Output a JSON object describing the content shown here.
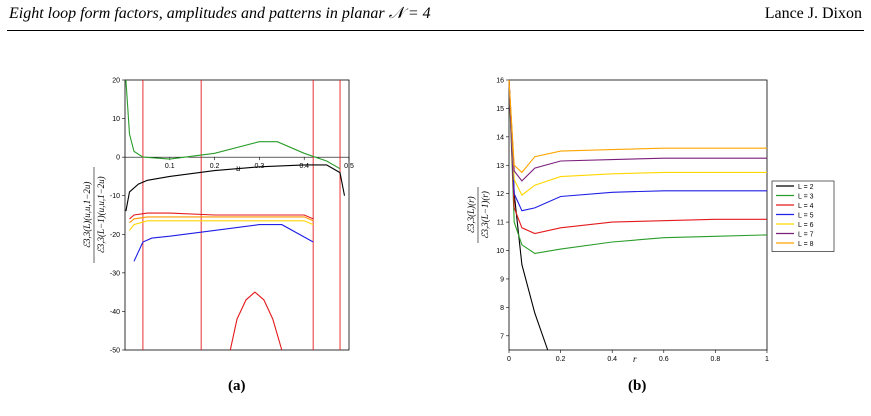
{
  "header": {
    "title": "Eight loop form factors, amplitudes and patterns in planar 𝒩 = 4",
    "author": "Lance J. Dixon"
  },
  "panels": [
    {
      "label": "(a)"
    },
    {
      "label": "(b)"
    }
  ],
  "chart_data": [
    {
      "type": "line",
      "xlabel": "u",
      "ylabel": "ℰ3,3(L)(u,u,1−2u) / ℰ3,3(L−1)(u,u,1−2u)",
      "xlim": [
        0,
        0.5
      ],
      "ylim": [
        -50,
        20
      ],
      "x_ticks": [
        "0.1",
        "0.2",
        "0.3",
        "0.4",
        "0.5"
      ],
      "y_ticks": [
        "20",
        "10",
        "0",
        "-10",
        "-20",
        "-30",
        "-40",
        "-50"
      ],
      "grid": false,
      "vertical_lines_red": [
        0.04,
        0.17,
        0.42,
        0.48
      ],
      "series": [
        {
          "color": "#2a9d2a",
          "x": [
            0.002,
            0.01,
            0.02,
            0.04,
            0.1,
            0.2,
            0.3,
            0.34,
            0.4,
            0.45,
            0.48
          ],
          "y": [
            20,
            6,
            1.5,
            0,
            -0.5,
            1,
            4,
            4,
            1,
            -1,
            -3
          ]
        },
        {
          "color": "#000000",
          "x": [
            0.002,
            0.01,
            0.03,
            0.05,
            0.1,
            0.2,
            0.3,
            0.4,
            0.45,
            0.48,
            0.49
          ],
          "y": [
            -14,
            -9,
            -7,
            -6,
            -5,
            -3.5,
            -2.5,
            -2,
            -2,
            -4,
            -10
          ]
        },
        {
          "color": "#e41a1c",
          "x": [
            0.01,
            0.02,
            0.05,
            0.1,
            0.2,
            0.3,
            0.4,
            0.42
          ],
          "y": [
            -16,
            -15,
            -14.5,
            -14.5,
            -15,
            -15,
            -15,
            -16
          ]
        },
        {
          "color": "#ff9900",
          "x": [
            0.01,
            0.02,
            0.05,
            0.1,
            0.2,
            0.3,
            0.4,
            0.42
          ],
          "y": [
            -17,
            -16,
            -15.5,
            -15.5,
            -15.5,
            -15.5,
            -15.5,
            -16.5
          ]
        },
        {
          "color": "#ffd700",
          "x": [
            0.01,
            0.02,
            0.05,
            0.1,
            0.2,
            0.3,
            0.4,
            0.42
          ],
          "y": [
            -19,
            -17.5,
            -16.5,
            -16.5,
            -16.5,
            -16.5,
            -16.5,
            -17.5
          ]
        },
        {
          "color": "#1f1fe6",
          "x": [
            0.02,
            0.04,
            0.06,
            0.1,
            0.2,
            0.3,
            0.35,
            0.42
          ],
          "y": [
            -27,
            -22,
            -21,
            -20.5,
            -19,
            -17.5,
            -17.5,
            -22
          ]
        },
        {
          "color": "#e41a1c",
          "x": [
            0.235,
            0.25,
            0.27,
            0.29,
            0.31,
            0.33,
            0.35
          ],
          "y": [
            -50,
            -42,
            -37,
            -35,
            -37,
            -42,
            -50
          ]
        }
      ]
    },
    {
      "type": "line",
      "xlabel": "r",
      "ylabel": "ℰ3,3(L)(r) / ℰ3,3(L−1)(r)",
      "xlim": [
        0,
        1
      ],
      "ylim": [
        6.5,
        16
      ],
      "x_ticks": [
        "0",
        "0.2",
        "0.4",
        "0.6",
        "0.8",
        "1"
      ],
      "y_ticks": [
        "16",
        "15",
        "14",
        "13",
        "12",
        "11",
        "10",
        "9",
        "8",
        "7"
      ],
      "grid": false,
      "legend": "right",
      "series": [
        {
          "name": "L = 2",
          "color": "#000000",
          "x": [
            0.0,
            0.02,
            0.05,
            0.1,
            0.15
          ],
          "y": [
            16,
            12,
            9.5,
            7.8,
            6.5
          ]
        },
        {
          "name": "L = 3",
          "color": "#2a9d2a",
          "x": [
            0.0,
            0.02,
            0.05,
            0.1,
            0.2,
            0.4,
            0.6,
            0.8,
            1.0
          ],
          "y": [
            16,
            11,
            10.2,
            9.9,
            10.05,
            10.3,
            10.45,
            10.5,
            10.55
          ]
        },
        {
          "name": "L = 4",
          "color": "#e41a1c",
          "x": [
            0.0,
            0.02,
            0.05,
            0.1,
            0.2,
            0.4,
            0.6,
            0.8,
            1.0
          ],
          "y": [
            16,
            11.5,
            10.8,
            10.6,
            10.8,
            11.0,
            11.05,
            11.1,
            11.1
          ]
        },
        {
          "name": "L = 5",
          "color": "#1f1fe6",
          "x": [
            0.0,
            0.02,
            0.05,
            0.1,
            0.2,
            0.4,
            0.6,
            0.8,
            1.0
          ],
          "y": [
            16,
            12,
            11.4,
            11.5,
            11.9,
            12.05,
            12.1,
            12.1,
            12.1
          ]
        },
        {
          "name": "L = 6",
          "color": "#ffd700",
          "x": [
            0.0,
            0.02,
            0.05,
            0.1,
            0.2,
            0.4,
            0.6,
            0.8,
            1.0
          ],
          "y": [
            16,
            12.5,
            11.95,
            12.3,
            12.6,
            12.7,
            12.75,
            12.75,
            12.75
          ]
        },
        {
          "name": "L = 7",
          "color": "#7b1f7b",
          "x": [
            0.0,
            0.02,
            0.05,
            0.1,
            0.2,
            0.4,
            0.6,
            0.8,
            1.0
          ],
          "y": [
            16,
            12.8,
            12.45,
            12.9,
            13.15,
            13.2,
            13.25,
            13.25,
            13.25
          ]
        },
        {
          "name": "L = 8",
          "color": "#ffa500",
          "x": [
            0.0,
            0.02,
            0.05,
            0.1,
            0.2,
            0.4,
            0.6,
            0.8,
            1.0
          ],
          "y": [
            16,
            13.0,
            12.75,
            13.3,
            13.5,
            13.55,
            13.6,
            13.6,
            13.6
          ]
        }
      ]
    }
  ]
}
